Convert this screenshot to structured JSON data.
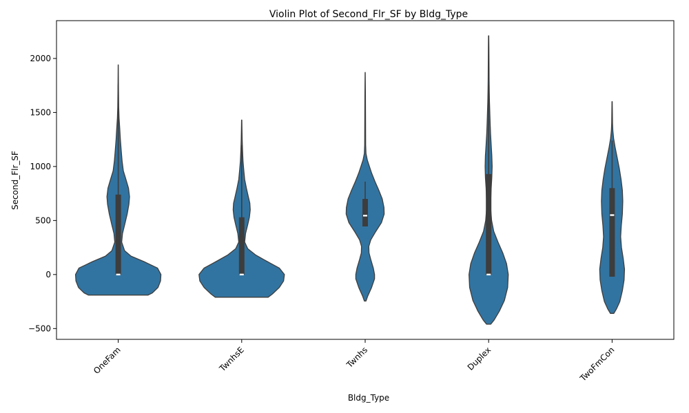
{
  "chart_data": {
    "type": "violin",
    "title": "Violin Plot of Second_Flr_SF by Bldg_Type",
    "xlabel": "Bldg_Type",
    "ylabel": "Second_Flr_SF",
    "categories": [
      "OneFam",
      "TwnhsE",
      "Twnhs",
      "Duplex",
      "TwoFmCon"
    ],
    "ylim": [
      -600,
      2350
    ],
    "yticks": [
      -500,
      0,
      500,
      1000,
      1500,
      2000
    ],
    "grid": false,
    "fill_color": "#3274a1",
    "edge_color": "#3d3d3d",
    "violins": [
      {
        "category": "OneFam",
        "min": -190,
        "max": 1940,
        "box": {
          "q1": 0,
          "median": 0,
          "q3": 740
        },
        "whisker": {
          "low": 0,
          "high": 1760
        },
        "profile": [
          [
            -190,
            0.7
          ],
          [
            -170,
            0.8
          ],
          [
            -120,
            0.93
          ],
          [
            -60,
            0.99
          ],
          [
            0,
            1.0
          ],
          [
            60,
            0.92
          ],
          [
            120,
            0.6
          ],
          [
            170,
            0.3
          ],
          [
            220,
            0.15
          ],
          [
            300,
            0.08
          ],
          [
            380,
            0.1
          ],
          [
            460,
            0.15
          ],
          [
            560,
            0.21
          ],
          [
            650,
            0.25
          ],
          [
            720,
            0.265
          ],
          [
            800,
            0.24
          ],
          [
            880,
            0.18
          ],
          [
            960,
            0.12
          ],
          [
            1050,
            0.09
          ],
          [
            1150,
            0.07
          ],
          [
            1250,
            0.05
          ],
          [
            1350,
            0.035
          ],
          [
            1450,
            0.02
          ],
          [
            1550,
            0.012
          ],
          [
            1700,
            0.007
          ],
          [
            1850,
            0.004
          ],
          [
            1940,
            0.002
          ]
        ]
      },
      {
        "category": "TwnhsE",
        "min": -210,
        "max": 1430,
        "box": {
          "q1": 0,
          "median": 0,
          "q3": 530
        },
        "whisker": {
          "low": 0,
          "high": 1200
        },
        "profile": [
          [
            -210,
            0.62
          ],
          [
            -180,
            0.72
          ],
          [
            -120,
            0.88
          ],
          [
            -60,
            0.98
          ],
          [
            0,
            1.0
          ],
          [
            60,
            0.88
          ],
          [
            120,
            0.6
          ],
          [
            180,
            0.33
          ],
          [
            240,
            0.14
          ],
          [
            300,
            0.07
          ],
          [
            380,
            0.09
          ],
          [
            460,
            0.14
          ],
          [
            530,
            0.18
          ],
          [
            600,
            0.2
          ],
          [
            660,
            0.19
          ],
          [
            720,
            0.155
          ],
          [
            800,
            0.11
          ],
          [
            880,
            0.07
          ],
          [
            960,
            0.05
          ],
          [
            1050,
            0.03
          ],
          [
            1150,
            0.02
          ],
          [
            1250,
            0.012
          ],
          [
            1350,
            0.006
          ],
          [
            1430,
            0.003
          ]
        ]
      },
      {
        "category": "Twnhs",
        "min": -245,
        "max": 1870,
        "box": {
          "q1": 445,
          "median": 545,
          "q3": 700
        },
        "whisker": {
          "low": 445,
          "high": 860
        },
        "profile": [
          [
            -245,
            0.02
          ],
          [
            -200,
            0.06
          ],
          [
            -120,
            0.15
          ],
          [
            -40,
            0.22
          ],
          [
            0,
            0.22
          ],
          [
            60,
            0.19
          ],
          [
            140,
            0.13
          ],
          [
            200,
            0.09
          ],
          [
            260,
            0.085
          ],
          [
            320,
            0.13
          ],
          [
            400,
            0.25
          ],
          [
            480,
            0.38
          ],
          [
            560,
            0.445
          ],
          [
            620,
            0.44
          ],
          [
            700,
            0.4
          ],
          [
            780,
            0.32
          ],
          [
            860,
            0.23
          ],
          [
            940,
            0.15
          ],
          [
            1000,
            0.1
          ],
          [
            1060,
            0.05
          ],
          [
            1120,
            0.02
          ],
          [
            1200,
            0.012
          ],
          [
            1350,
            0.01
          ],
          [
            1500,
            0.008
          ],
          [
            1650,
            0.006
          ],
          [
            1800,
            0.004
          ],
          [
            1870,
            0.002
          ]
        ]
      },
      {
        "category": "Duplex",
        "min": -460,
        "max": 2210,
        "box": {
          "q1": 0,
          "median": 0,
          "q3": 930
        },
        "whisker": {
          "low": 0,
          "high": 1760
        },
        "profile": [
          [
            -460,
            0.05
          ],
          [
            -420,
            0.13
          ],
          [
            -340,
            0.25
          ],
          [
            -240,
            0.37
          ],
          [
            -120,
            0.445
          ],
          [
            0,
            0.46
          ],
          [
            100,
            0.42
          ],
          [
            200,
            0.33
          ],
          [
            300,
            0.22
          ],
          [
            400,
            0.12
          ],
          [
            500,
            0.07
          ],
          [
            600,
            0.05
          ],
          [
            700,
            0.05
          ],
          [
            800,
            0.06
          ],
          [
            900,
            0.075
          ],
          [
            1000,
            0.082
          ],
          [
            1100,
            0.075
          ],
          [
            1200,
            0.06
          ],
          [
            1300,
            0.045
          ],
          [
            1400,
            0.035
          ],
          [
            1500,
            0.028
          ],
          [
            1600,
            0.02
          ],
          [
            1700,
            0.015
          ],
          [
            1800,
            0.012
          ],
          [
            1900,
            0.01
          ],
          [
            2000,
            0.008
          ],
          [
            2100,
            0.006
          ],
          [
            2210,
            0.003
          ]
        ]
      },
      {
        "category": "TwoFmCon",
        "min": -360,
        "max": 1600,
        "box": {
          "q1": -20,
          "median": 550,
          "q3": 800
        },
        "whisker": {
          "low": -20,
          "high": 1240
        },
        "profile": [
          [
            -360,
            0.04
          ],
          [
            -320,
            0.1
          ],
          [
            -250,
            0.18
          ],
          [
            -150,
            0.24
          ],
          [
            -50,
            0.28
          ],
          [
            50,
            0.29
          ],
          [
            150,
            0.26
          ],
          [
            250,
            0.22
          ],
          [
            350,
            0.2
          ],
          [
            450,
            0.215
          ],
          [
            560,
            0.24
          ],
          [
            680,
            0.25
          ],
          [
            780,
            0.24
          ],
          [
            880,
            0.21
          ],
          [
            980,
            0.17
          ],
          [
            1080,
            0.12
          ],
          [
            1180,
            0.07
          ],
          [
            1260,
            0.035
          ],
          [
            1330,
            0.018
          ],
          [
            1400,
            0.01
          ],
          [
            1500,
            0.006
          ],
          [
            1600,
            0.003
          ]
        ]
      }
    ]
  }
}
